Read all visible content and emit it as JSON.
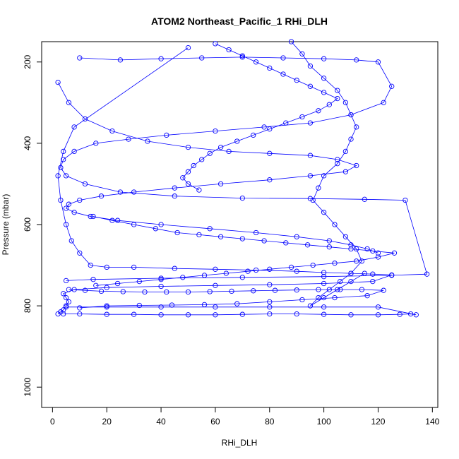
{
  "chart_data": {
    "type": "scatter",
    "title": "ATOM2 Northeast_Pacific_1 RHi_DLH",
    "xlabel": "RHi_DLH",
    "ylabel": "Pressure (mbar)",
    "xlim": [
      -4,
      142
    ],
    "ylim": [
      1050,
      150
    ],
    "y_reversed": true,
    "x_ticks": [
      0,
      20,
      40,
      60,
      80,
      100,
      120,
      140
    ],
    "y_ticks": [
      200,
      400,
      600,
      800,
      1000
    ],
    "grid": false,
    "legend": "none",
    "point_style": "open-circle",
    "connected_lines": true,
    "color": "#0000ff",
    "series": [
      {
        "x": [
          50,
          8,
          4,
          2,
          3,
          5,
          7,
          10,
          14,
          20,
          30,
          45,
          60,
          75,
          90,
          100,
          110,
          118,
          125,
          118,
          100,
          80,
          60,
          40,
          20,
          8,
          4,
          5,
          6,
          5,
          4,
          3,
          2
        ],
        "y": [
          165,
          360,
          420,
          480,
          540,
          600,
          640,
          670,
          700,
          705,
          705,
          708,
          710,
          712,
          715,
          718,
          720,
          722,
          724,
          740,
          745,
          748,
          750,
          752,
          755,
          760,
          770,
          780,
          790,
          800,
          810,
          815,
          820
        ]
      },
      {
        "x": [
          2,
          6,
          12,
          22,
          35,
          50,
          65,
          80,
          95,
          105,
          112,
          108,
          95,
          80,
          62,
          45,
          30,
          18,
          10,
          6,
          5,
          8,
          14,
          24,
          40,
          58,
          75,
          90,
          102,
          110,
          116,
          120
        ],
        "y": [
          250,
          300,
          340,
          370,
          395,
          410,
          420,
          425,
          430,
          440,
          455,
          470,
          480,
          490,
          500,
          510,
          520,
          530,
          540,
          550,
          560,
          570,
          580,
          590,
          600,
          610,
          620,
          630,
          640,
          650,
          660,
          670
        ]
      },
      {
        "x": [
          10,
          25,
          40,
          55,
          70,
          85,
          100,
          112,
          120,
          125,
          122,
          110,
          95,
          78,
          60,
          42,
          28,
          16,
          8,
          4,
          3,
          5,
          12,
          25,
          45,
          70,
          95,
          115,
          130,
          138,
          125,
          100,
          70,
          40,
          15,
          5
        ],
        "y": [
          190,
          195,
          192,
          190,
          188,
          190,
          192,
          195,
          200,
          260,
          300,
          330,
          350,
          360,
          370,
          380,
          390,
          400,
          420,
          440,
          460,
          480,
          500,
          520,
          530,
          535,
          536,
          538,
          540,
          722,
          725,
          728,
          730,
          732,
          735,
          738
        ]
      },
      {
        "x": [
          4,
          10,
          20,
          30,
          40,
          50,
          60,
          70,
          80,
          90,
          100,
          110,
          120,
          128,
          132,
          134,
          120,
          100,
          80,
          60,
          40,
          20,
          5
        ],
        "y": [
          820,
          820,
          821,
          821,
          822,
          822,
          822,
          821,
          820,
          820,
          821,
          822,
          822,
          821,
          820,
          822,
          803,
          803,
          803,
          803,
          803,
          803,
          803
        ]
      },
      {
        "x": [
          88,
          92,
          95,
          100,
          105,
          108,
          110,
          112,
          110,
          108,
          105,
          100,
          98,
          96,
          100,
          104,
          108,
          112,
          114,
          110,
          106,
          102,
          98,
          95,
          100,
          105,
          110,
          115
        ],
        "y": [
          150,
          180,
          210,
          240,
          270,
          300,
          330,
          360,
          390,
          420,
          450,
          480,
          510,
          540,
          570,
          600,
          630,
          660,
          690,
          720,
          740,
          760,
          780,
          800,
          780,
          760,
          740,
          720
        ]
      },
      {
        "x": [
          15,
          22,
          30,
          38,
          46,
          54,
          62,
          70,
          78,
          86,
          94,
          102,
          110,
          118,
          126,
          120,
          112,
          104,
          96,
          88,
          80,
          72,
          64,
          56,
          48,
          40,
          32,
          24,
          16
        ],
        "y": [
          580,
          590,
          600,
          610,
          620,
          625,
          630,
          635,
          640,
          645,
          650,
          655,
          660,
          665,
          670,
          680,
          690,
          695,
          700,
          705,
          710,
          715,
          720,
          725,
          730,
          735,
          740,
          745,
          750
        ]
      },
      {
        "x": [
          6,
          12,
          18,
          26,
          34,
          42,
          50,
          58,
          66,
          74,
          82,
          90,
          98,
          106,
          114,
          122,
          116,
          104,
          92,
          80,
          68,
          56,
          44,
          32,
          20,
          10
        ],
        "y": [
          760,
          762,
          764,
          765,
          766,
          766,
          766,
          765,
          764,
          763,
          762,
          761,
          760,
          760,
          760,
          762,
          775,
          780,
          785,
          790,
          795,
          797,
          798,
          799,
          800,
          805
        ]
      },
      {
        "x": [
          60,
          65,
          70,
          75,
          80,
          85,
          90,
          95,
          100,
          105,
          102,
          98,
          92,
          86,
          80,
          74,
          68,
          62,
          58,
          55,
          52,
          50,
          48,
          50,
          54
        ],
        "y": [
          155,
          170,
          185,
          200,
          215,
          230,
          245,
          260,
          275,
          290,
          305,
          320,
          335,
          350,
          365,
          380,
          395,
          410,
          425,
          440,
          455,
          470,
          485,
          500,
          515
        ]
      }
    ]
  }
}
